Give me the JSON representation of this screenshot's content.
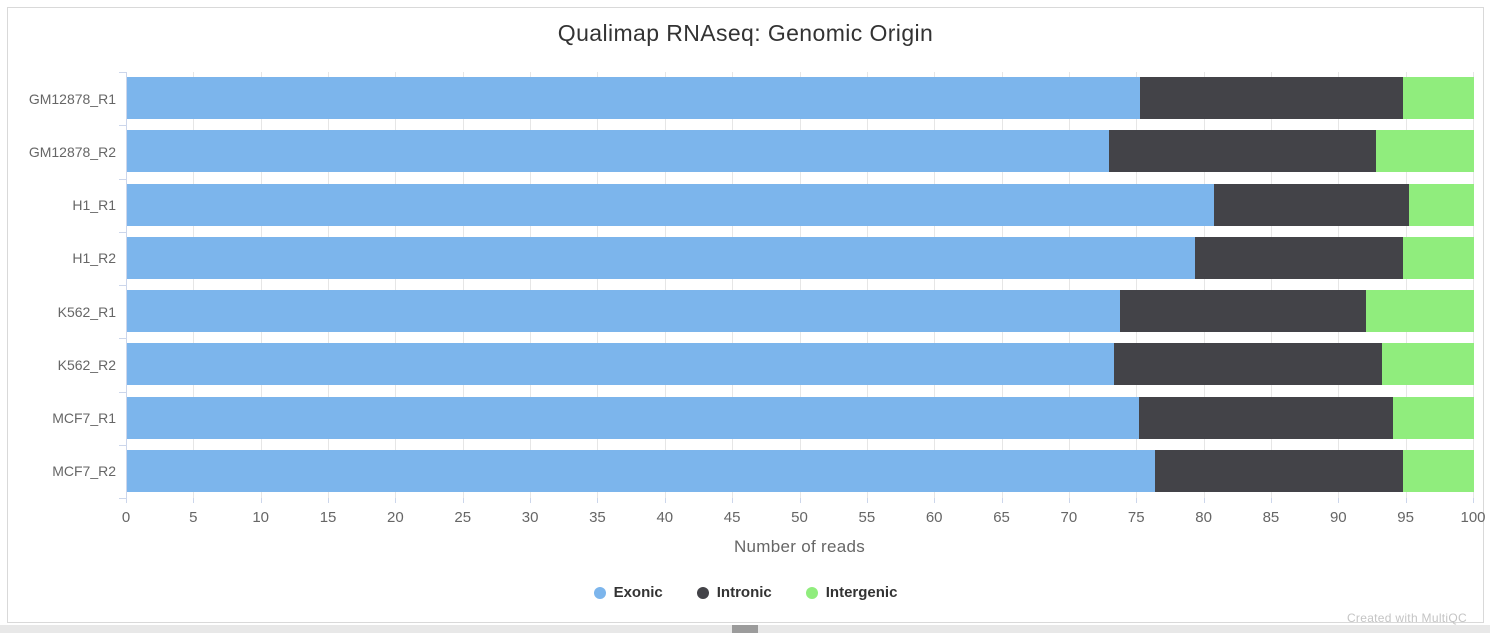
{
  "page": {
    "watermark": "Created with MultiQC"
  },
  "chart_data": {
    "type": "bar",
    "orientation": "horizontal",
    "stacked": true,
    "title": "Qualimap RNAseq: Genomic Origin",
    "xlabel": "Number of reads",
    "ylabel": "",
    "xlim": [
      0,
      100
    ],
    "x_ticks": [
      0,
      5,
      10,
      15,
      20,
      25,
      30,
      35,
      40,
      45,
      50,
      55,
      60,
      65,
      70,
      75,
      80,
      85,
      90,
      95,
      100
    ],
    "grid": true,
    "legend_position": "bottom",
    "categories": [
      "GM12878_R1",
      "GM12878_R2",
      "H1_R1",
      "H1_R2",
      "K562_R1",
      "K562_R2",
      "MCF7_R1",
      "MCF7_R2"
    ],
    "series": [
      {
        "name": "Exonic",
        "color": "#7cb5ec",
        "values": [
          75.2,
          72.9,
          80.7,
          79.3,
          73.7,
          73.3,
          75.1,
          76.3
        ]
      },
      {
        "name": "Intronic",
        "color": "#434348",
        "values": [
          19.5,
          19.8,
          14.5,
          15.4,
          18.3,
          19.9,
          18.9,
          18.4
        ]
      },
      {
        "name": "Intergenic",
        "color": "#90ed7d",
        "values": [
          5.3,
          7.3,
          4.8,
          5.3,
          8.0,
          6.8,
          6.0,
          5.3
        ]
      }
    ]
  },
  "colors": {
    "grid": "#e6e6e6",
    "axis": "#ccd6eb",
    "tick_label": "#666666",
    "title": "#333333",
    "watermark": "#c4c4c4"
  }
}
